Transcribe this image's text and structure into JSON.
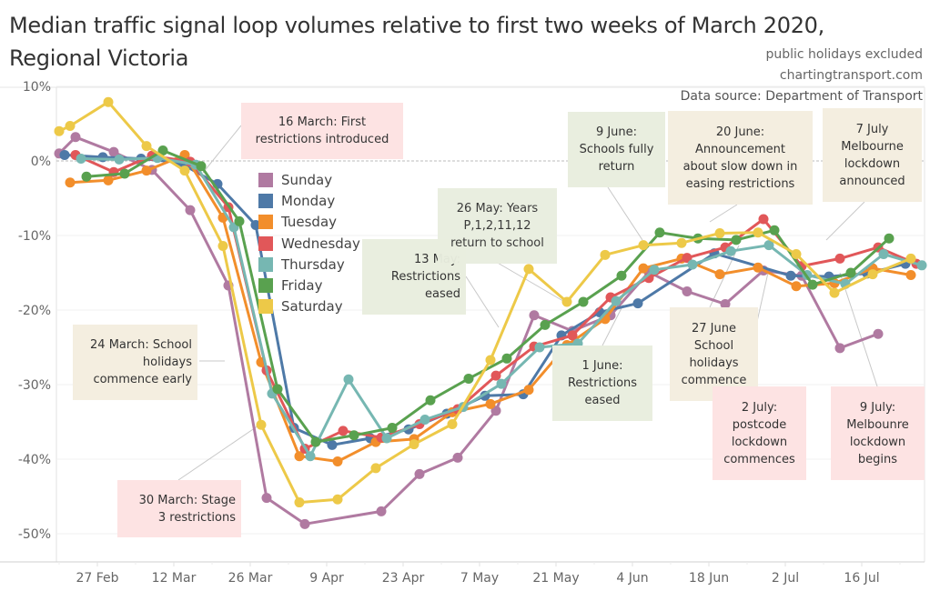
{
  "header": {
    "title_line1": "Median traffic signal loop volumes relative to first two weeks of March 2020,",
    "title_line2": "Regional Victoria",
    "note1": "public holidays excluded",
    "note2": "chartingtransport.com",
    "source": "Data source: Department of Transport"
  },
  "chart_data": {
    "type": "line",
    "title": "Median traffic signal loop volumes relative to first two weeks of March 2020, Regional Victoria",
    "xlabel": "",
    "ylabel": "",
    "ylim": [
      -54,
      11
    ],
    "y_ticks": [
      10,
      0,
      -10,
      -20,
      -30,
      -40,
      -50
    ],
    "y_tick_labels": [
      "10%",
      "0%",
      "-10%",
      "-20%",
      "-30%",
      "-40%",
      "-50%"
    ],
    "x_tick_labels": [
      "27 Feb",
      "12 Mar",
      "26 Mar",
      "9 Apr",
      "23 Apr",
      "7 May",
      "21 May",
      "4 Jun",
      "18 Jun",
      "2 Jul",
      "16 Jul"
    ],
    "x_tick_days": [
      0,
      14,
      28,
      42,
      56,
      70,
      84,
      98,
      112,
      126,
      140
    ],
    "x_unit": "days since 27 Feb 2020",
    "xlim": [
      -7,
      150
    ],
    "grid": true,
    "zero_line": "dashed",
    "legend_position": "left-center",
    "series": [
      {
        "name": "Sunday",
        "color": "#B07AA1",
        "x": [
          -7,
          -4,
          3,
          10,
          17,
          24,
          31,
          38,
          52,
          59,
          66,
          73,
          80,
          87,
          94,
          101,
          108,
          115,
          122,
          129,
          136,
          143
        ],
        "y": [
          1.0,
          3.2,
          1.2,
          -1.2,
          -6.6,
          -16.7,
          -45.2,
          -48.7,
          -47.0,
          -42.0,
          -39.8,
          -33.5,
          -20.7,
          -22.8,
          -20.7,
          -14.9,
          -17.5,
          -19.2,
          -14.7,
          -15.4,
          -25.1,
          -23.2
        ]
      },
      {
        "name": "Monday",
        "color": "#4E79A7",
        "x": [
          -6,
          1,
          8,
          15,
          22,
          29,
          36,
          43,
          50,
          57,
          64,
          71,
          78,
          85,
          92,
          99,
          113,
          127,
          134,
          141,
          148
        ],
        "y": [
          0.8,
          0.5,
          0.3,
          -0.2,
          -3.1,
          -8.6,
          -35.8,
          -38.1,
          -37.2,
          -36.0,
          -33.9,
          -31.5,
          -31.3,
          -23.4,
          -20.3,
          -19.1,
          -12.4,
          -15.4,
          -15.5,
          -15.1,
          -13.8
        ]
      },
      {
        "name": "Tuesday",
        "color": "#F28E2B",
        "x": [
          -5,
          2,
          9,
          16,
          23,
          30,
          37,
          44,
          51,
          58,
          65,
          72,
          79,
          86,
          93,
          100,
          107,
          114,
          121,
          128,
          135,
          142,
          149
        ],
        "y": [
          -2.9,
          -2.6,
          -1.3,
          0.8,
          -7.6,
          -27.0,
          -39.6,
          -40.3,
          -37.7,
          -37.3,
          -33.7,
          -32.6,
          -30.7,
          -24.7,
          -21.2,
          -14.4,
          -13.1,
          -15.2,
          -14.3,
          -16.8,
          -16.4,
          -14.4,
          -15.3
        ]
      },
      {
        "name": "Wednesday",
        "color": "#E15759",
        "x": [
          -4,
          3,
          10,
          17,
          24,
          31,
          38,
          45,
          52,
          59,
          66,
          73,
          80,
          87,
          94,
          101,
          108,
          115,
          122,
          129,
          136,
          143,
          150
        ],
        "y": [
          0.8,
          -1.5,
          0.7,
          -0.1,
          -6.2,
          -28.1,
          -38.6,
          -36.2,
          -37.1,
          -35.3,
          -33.3,
          -28.8,
          -24.9,
          -23.4,
          -18.3,
          -15.7,
          -13.0,
          -11.6,
          -7.8,
          -14.1,
          -13.1,
          -11.6,
          -13.8
        ]
      },
      {
        "name": "Thursday",
        "color": "#76B7B2",
        "x": [
          -3,
          4,
          11,
          18,
          25,
          32,
          39,
          46,
          53,
          60,
          67,
          74,
          81,
          88,
          95,
          102,
          109,
          116,
          123,
          130,
          137,
          144,
          151
        ],
        "y": [
          0.3,
          0.2,
          0.4,
          -0.5,
          -8.9,
          -31.2,
          -39.6,
          -29.3,
          -37.2,
          -34.7,
          -33.0,
          -29.9,
          -25.0,
          -24.5,
          -18.8,
          -14.6,
          -13.9,
          -12.1,
          -11.3,
          -15.3,
          -16.5,
          -12.5,
          -14.0
        ]
      },
      {
        "name": "Friday",
        "color": "#59A14F",
        "x": [
          -2,
          5,
          12,
          19,
          26,
          33,
          40,
          47,
          54,
          61,
          68,
          75,
          82,
          89,
          96,
          103,
          110,
          117,
          124,
          131,
          138,
          145
        ],
        "y": [
          -2.1,
          -1.7,
          1.4,
          -0.7,
          -8.1,
          -30.6,
          -37.7,
          -36.8,
          -35.8,
          -32.1,
          -29.2,
          -26.5,
          -22.0,
          -18.9,
          -15.4,
          -9.6,
          -10.4,
          -10.6,
          -9.3,
          -16.6,
          -15.0,
          -10.4
        ]
      },
      {
        "name": "Saturday",
        "color": "#EDC948",
        "x": [
          -7,
          -5,
          2,
          9,
          16,
          23,
          30,
          37,
          44,
          51,
          58,
          65,
          72,
          79,
          86,
          93,
          100,
          107,
          114,
          121,
          128,
          135,
          142,
          149
        ],
        "y": [
          4.0,
          4.7,
          7.9,
          2.0,
          -1.3,
          -11.4,
          -35.4,
          -45.8,
          -45.4,
          -41.2,
          -38.0,
          -35.3,
          -26.7,
          -14.5,
          -18.9,
          -12.6,
          -11.3,
          -11.0,
          -9.7,
          -9.6,
          -12.5,
          -17.7,
          -15.2,
          -13.1
        ]
      }
    ],
    "annotations": [
      {
        "text": "16 March: First restrictions introduced",
        "day": 18,
        "value": -2,
        "category": "restriction"
      },
      {
        "text": "24 March: School holidays commence early",
        "day": 26,
        "value": -27,
        "category": "school"
      },
      {
        "text": "30 March: Stage 3 restrictions",
        "day": 32,
        "value": -36,
        "category": "restriction"
      },
      {
        "text": "13 May: Restrictions eased",
        "day": 76,
        "value": -22,
        "category": "easing"
      },
      {
        "text": "26 May: Years P,1,2,11,12 return to school",
        "day": 89,
        "value": -20,
        "category": "easing"
      },
      {
        "text": "1 June: Restrictions eased",
        "day": 95,
        "value": -21,
        "category": "easing"
      },
      {
        "text": "9 June: Schools fully return",
        "day": 103,
        "value": -11,
        "category": "easing"
      },
      {
        "text": "20 June: Announcement about slow down in easing restrictions",
        "day": 114,
        "value": -9,
        "category": "school"
      },
      {
        "text": "27 June School holidays commence",
        "day": 121,
        "value": -12,
        "category": "school"
      },
      {
        "text": "2 July: postcode lockdown commences",
        "day": 126,
        "value": -16,
        "category": "restriction"
      },
      {
        "text": "7 July Melbourne lockdown announced",
        "day": 131,
        "value": -13,
        "category": "school"
      },
      {
        "text": "9 July: Melbounre lockdown begins",
        "day": 133,
        "value": -17,
        "category": "restriction"
      }
    ]
  },
  "annotations": {
    "a16mar": {
      "l1": "16 March: First",
      "l2": "restrictions introduced"
    },
    "a24mar": {
      "l1": "24 March: School",
      "l2": "holidays",
      "l3": "commence early"
    },
    "a30mar": {
      "l1": "30 March: Stage",
      "l2": "3 restrictions"
    },
    "a13may": {
      "l1": "13 May:",
      "l2": "Restrictions",
      "l3": "eased"
    },
    "a26may": {
      "l1": "26 May: Years",
      "l2": "P,1,2,11,12",
      "l3": "return to school"
    },
    "a1jun": {
      "l1": "1 June:",
      "l2": "Restrictions",
      "l3": "eased"
    },
    "a9jun": {
      "l1": "9 June:",
      "l2": "Schools fully",
      "l3": "return"
    },
    "a20jun": {
      "l1": "20 June:",
      "l2": "Announcement",
      "l3": "about slow down in",
      "l4": "easing restrictions"
    },
    "a27jun": {
      "l1": "27 June",
      "l2": "School",
      "l3": "holidays",
      "l4": "commence"
    },
    "a2jul": {
      "l1": "2 July:",
      "l2": "postcode",
      "l3": "lockdown",
      "l4": "commences"
    },
    "a7jul": {
      "l1": "7 July",
      "l2": "Melbourne",
      "l3": "lockdown",
      "l4": "announced"
    },
    "a9jul": {
      "l1": "9 July:",
      "l2": "Melbounre",
      "l3": "lockdown",
      "l4": "begins"
    }
  },
  "colors": {
    "restriction_box": "#FDE3E3",
    "school_box": "#F4EEE0",
    "easing_box": "#E9EEDF"
  }
}
